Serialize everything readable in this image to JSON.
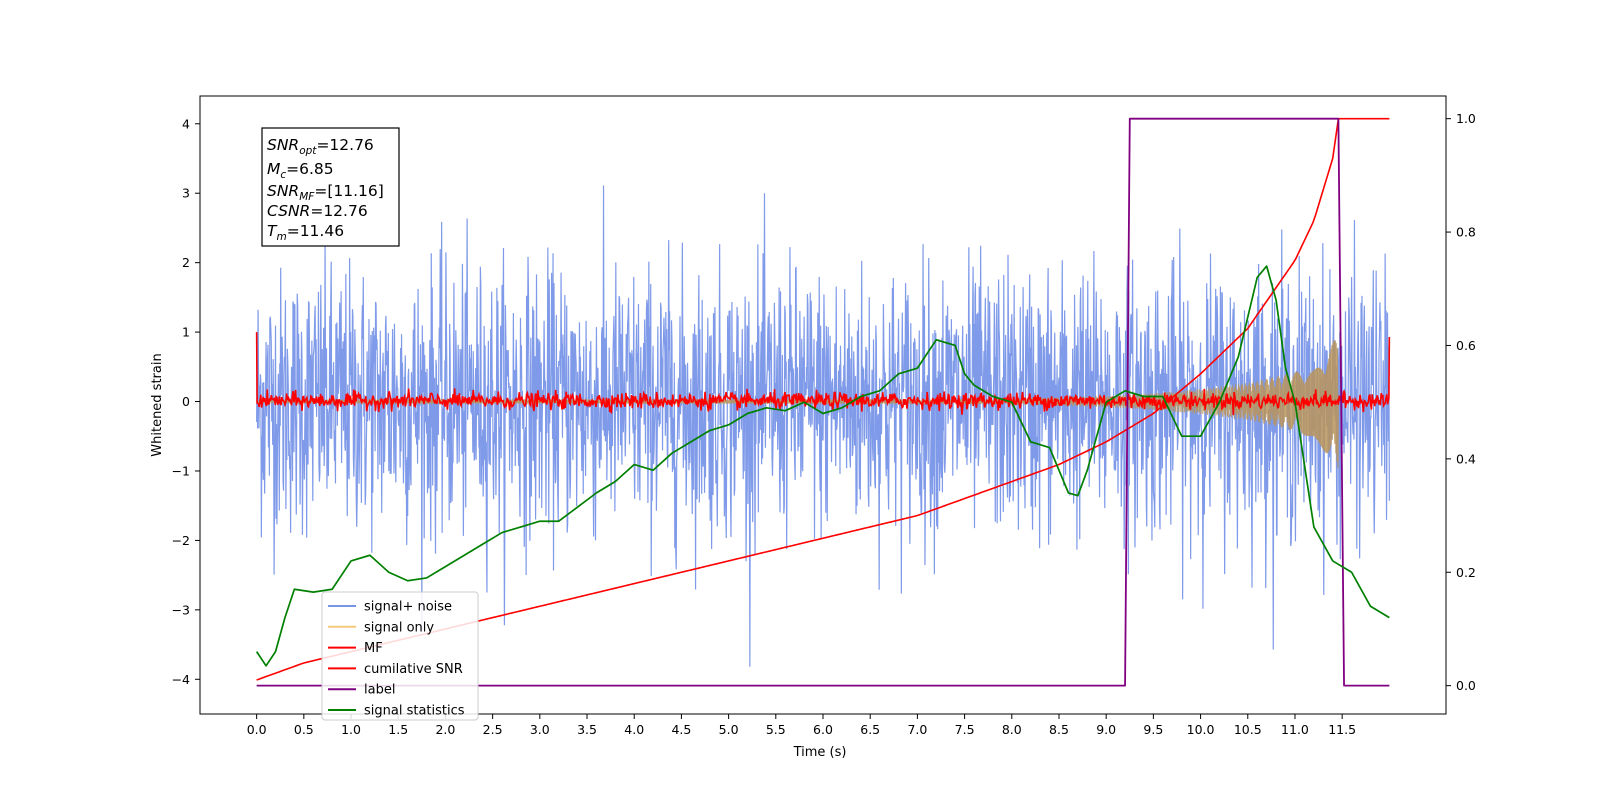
{
  "chart_data": {
    "type": "line",
    "xlabel": "Time (s)",
    "ylabel": "Whitened strain",
    "xlim": [
      -0.6,
      12.6
    ],
    "ylim_left": [
      -4.5,
      4.4
    ],
    "ylim_right": [
      -0.05,
      1.04
    ],
    "x_ticks": [
      0.0,
      0.5,
      1.0,
      1.5,
      2.0,
      2.5,
      3.0,
      3.5,
      4.0,
      4.5,
      5.0,
      5.5,
      6.0,
      6.5,
      7.0,
      7.5,
      8.0,
      8.5,
      9.0,
      9.5,
      10.0,
      10.5,
      11.0,
      11.5
    ],
    "x_tick_labels": [
      "0.0",
      "0.5",
      "1.0",
      "1.5",
      "2.0",
      "2.5",
      "3.0",
      "3.5",
      "4.0",
      "4.5",
      "5.0",
      "5.5",
      "6.0",
      "6.5",
      "7.0",
      "7.5",
      "8.0",
      "8.5",
      "9.0",
      "9.5",
      "10.0",
      "10.5",
      "11.0",
      "11.5"
    ],
    "y_left_ticks": [
      4,
      3,
      2,
      1,
      0,
      -1,
      -2,
      -3,
      -4
    ],
    "y_left_tick_labels": [
      "4",
      "3",
      "2",
      "1",
      "0",
      "−1",
      "−2",
      "−3",
      "−4"
    ],
    "y_right_ticks": [
      1.0,
      0.8,
      0.6,
      0.4,
      0.2,
      0.0
    ],
    "y_right_tick_labels": [
      "1.0",
      "0.8",
      "0.6",
      "0.4",
      "0.2",
      "0.0"
    ],
    "grid": false,
    "legend_position": "lower-left",
    "stats_box": {
      "snr_opt": "=12.76",
      "mc": "=6.85",
      "snr_mf": "=[11.16]",
      "csnr": "=12.76",
      "tm": "=11.46"
    },
    "series": [
      {
        "name": "signal+ noise",
        "color": "#7895e8",
        "axis": "left",
        "description_values": {
          "x_range": [
            0,
            12
          ],
          "noise_sigma": 1.0,
          "max": 4.0,
          "min": -4.15
        }
      },
      {
        "name": "signal only",
        "color": "#f5c97a",
        "axis": "left",
        "envelope": {
          "x": [
            0,
            8.0,
            9.0,
            9.5,
            10.0,
            10.5,
            11.0,
            11.2,
            11.4,
            11.46
          ],
          "amp": [
            0.02,
            0.04,
            0.08,
            0.12,
            0.18,
            0.27,
            0.42,
            0.55,
            0.85,
            1.0
          ]
        }
      },
      {
        "name": "MF",
        "color": "#ff0000",
        "axis": "left",
        "values": {
          "start": 1.0,
          "baseline_sigma": 0.06,
          "end": 0.93
        }
      },
      {
        "name": "cumilative SNR",
        "color": "#ff0000",
        "axis": "right",
        "x": [
          0,
          0.5,
          1.0,
          1.5,
          2.0,
          2.5,
          3.0,
          3.5,
          4.0,
          4.5,
          5.0,
          5.5,
          6.0,
          6.5,
          7.0,
          7.5,
          8.0,
          8.5,
          9.0,
          9.5,
          10.0,
          10.5,
          11.0,
          11.2,
          11.4,
          11.46,
          12.0
        ],
        "values": [
          0.01,
          0.04,
          0.06,
          0.08,
          0.1,
          0.12,
          0.14,
          0.16,
          0.18,
          0.2,
          0.22,
          0.24,
          0.26,
          0.28,
          0.3,
          0.33,
          0.36,
          0.39,
          0.43,
          0.48,
          0.55,
          0.63,
          0.75,
          0.82,
          0.93,
          1.0,
          1.0
        ]
      },
      {
        "name": "label",
        "color": "#800080",
        "axis": "right",
        "x": [
          0,
          9.2,
          9.25,
          11.46,
          11.52,
          12.0
        ],
        "values": [
          0,
          0,
          1,
          1,
          0,
          0
        ]
      },
      {
        "name": "signal statistics",
        "color": "#008000",
        "axis": "right",
        "x": [
          0,
          0.1,
          0.2,
          0.3,
          0.4,
          0.6,
          0.8,
          1.0,
          1.2,
          1.4,
          1.6,
          1.8,
          2.0,
          2.2,
          2.4,
          2.6,
          2.8,
          3.0,
          3.2,
          3.4,
          3.6,
          3.8,
          4.0,
          4.2,
          4.4,
          4.6,
          4.8,
          5.0,
          5.2,
          5.4,
          5.6,
          5.8,
          6.0,
          6.2,
          6.4,
          6.6,
          6.8,
          7.0,
          7.2,
          7.4,
          7.5,
          7.6,
          7.8,
          8.0,
          8.2,
          8.4,
          8.6,
          8.7,
          8.8,
          9.0,
          9.2,
          9.4,
          9.6,
          9.8,
          10.0,
          10.2,
          10.4,
          10.6,
          10.7,
          10.8,
          10.9,
          11.0,
          11.2,
          11.4,
          11.6,
          11.8,
          12.0
        ],
        "values": [
          0.06,
          0.035,
          0.06,
          0.12,
          0.17,
          0.165,
          0.17,
          0.22,
          0.23,
          0.2,
          0.185,
          0.19,
          0.21,
          0.23,
          0.25,
          0.27,
          0.28,
          0.29,
          0.29,
          0.315,
          0.34,
          0.36,
          0.39,
          0.38,
          0.41,
          0.43,
          0.45,
          0.46,
          0.48,
          0.49,
          0.485,
          0.5,
          0.48,
          0.49,
          0.51,
          0.52,
          0.55,
          0.56,
          0.61,
          0.6,
          0.55,
          0.53,
          0.51,
          0.5,
          0.43,
          0.42,
          0.34,
          0.335,
          0.38,
          0.5,
          0.52,
          0.51,
          0.51,
          0.44,
          0.44,
          0.5,
          0.58,
          0.72,
          0.74,
          0.68,
          0.56,
          0.5,
          0.28,
          0.22,
          0.2,
          0.14,
          0.12
        ]
      }
    ]
  }
}
